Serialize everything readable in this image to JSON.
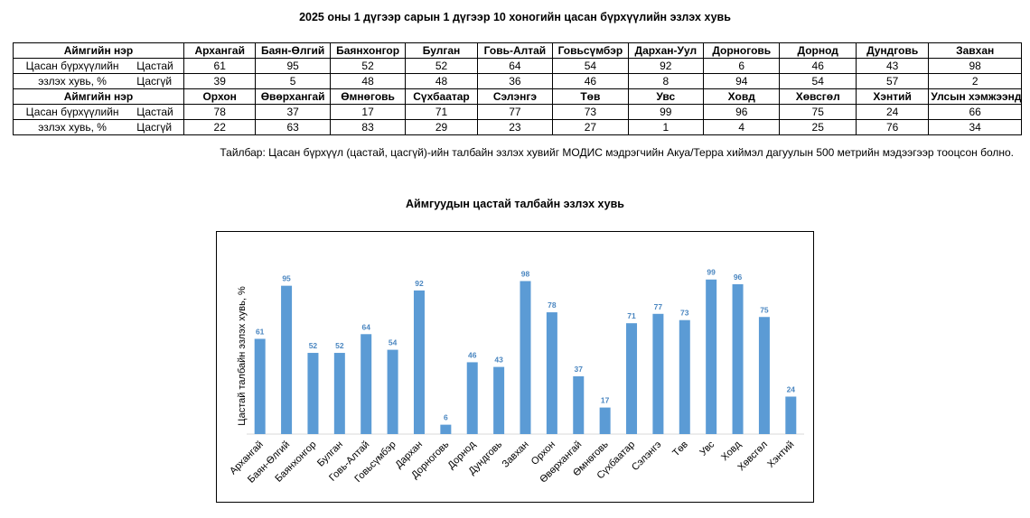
{
  "page": {
    "title": "2025 оны 1 дүгээр сарын 1 дүгээр 10 хоногийн цасан бүрхүүлийн эзлэх хувь",
    "note": "Тайлбар: Цасан бүрхүүл (цастай, цасгүй)-ийн талбайн эзлэх хувийг МОДИС мэдрэгчийн Акуа/Терра хиймэл дагуулын 500 метрийн мэдээгээр тооцсон болно."
  },
  "table": {
    "header_label": "Аймгийн нэр",
    "row_label_line1": "Цасан бүрхүүлийн",
    "row_label_line2": "эзлэх хувь, %",
    "snow_label": "Цастай",
    "nosnow_label": "Цасгүй",
    "blocks": [
      {
        "names": [
          "Архангай",
          "Баян-Өлгий",
          "Баянхонгор",
          "Булган",
          "Говь-Алтай",
          "Говьсүмбэр",
          "Дархан-Уул",
          "Дорноговь",
          "Дорнод",
          "Дундговь",
          "Завхан"
        ],
        "snow": [
          "61",
          "95",
          "52",
          "52",
          "64",
          "54",
          "92",
          "6",
          "46",
          "43",
          "98"
        ],
        "nosnow": [
          "39",
          "5",
          "48",
          "48",
          "36",
          "46",
          "8",
          "94",
          "54",
          "57",
          "2"
        ]
      },
      {
        "names": [
          "Орхон",
          "Өвөрхангай",
          "Өмнөговь",
          "Сүхбаатар",
          "Сэлэнгэ",
          "Төв",
          "Увс",
          "Ховд",
          "Хөвсгөл",
          "Хэнтий",
          "Улсын хэмжээнд"
        ],
        "snow": [
          "78",
          "37",
          "17",
          "71",
          "77",
          "73",
          "99",
          "96",
          "75",
          "24",
          "66"
        ],
        "nosnow": [
          "22",
          "63",
          "83",
          "29",
          "23",
          "27",
          "1",
          "4",
          "25",
          "76",
          "34"
        ]
      }
    ]
  },
  "chart_data": {
    "type": "bar",
    "title": "Аймгуудын цастай талбайн эзлэх хувь",
    "ylabel": "Цастай талбайн эзлэх хувь, %",
    "xlabel": "",
    "ylim": [
      0,
      100
    ],
    "grid": false,
    "bar_color": "#5b9bd5",
    "label_color": "#4a86c0",
    "categories": [
      "Архангай",
      "Баян-Өлгий",
      "Баянхонгор",
      "Булган",
      "Говь-Алтай",
      "Говьсүмбэр",
      "Дархан",
      "Дорноговь",
      "Дорнод",
      "Дундговь",
      "Завхан",
      "Орхон",
      "Өвөрхангай",
      "Өмнөговь",
      "Сүхбаатар",
      "Сэлэнгэ",
      "Төв",
      "Увс",
      "Ховд",
      "Хөвсгөл",
      "Хэнтий"
    ],
    "values": [
      61,
      95,
      52,
      52,
      64,
      54,
      92,
      6,
      46,
      43,
      98,
      78,
      37,
      17,
      71,
      77,
      73,
      99,
      96,
      75,
      24
    ]
  }
}
